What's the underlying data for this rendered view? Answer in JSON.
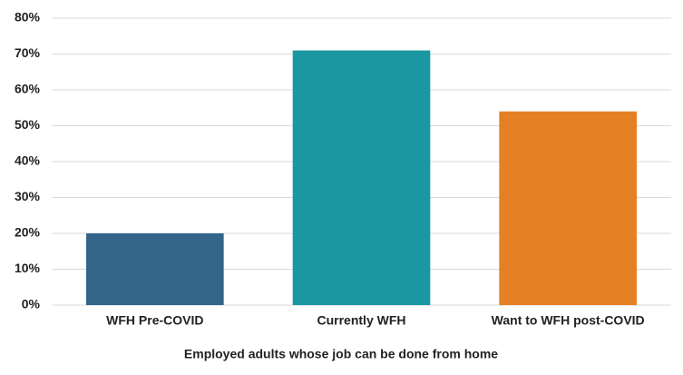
{
  "chart_data": {
    "type": "bar",
    "x_label": "Employed adults whose job can be done from home",
    "categories": [
      "WFH Pre-COVID",
      "Currently WFH",
      "Want to WFH post-COVID"
    ],
    "values": [
      20,
      71,
      54
    ],
    "colors": [
      "#33658a",
      "#1b97a2",
      "#e68025"
    ],
    "ylim": [
      0,
      80
    ],
    "yticks": [
      {
        "value": 0,
        "label": "0%"
      },
      {
        "value": 10,
        "label": "10%"
      },
      {
        "value": 20,
        "label": "20%"
      },
      {
        "value": 30,
        "label": "30%"
      },
      {
        "value": 40,
        "label": "40%"
      },
      {
        "value": 50,
        "label": "50%"
      },
      {
        "value": 60,
        "label": "60%"
      },
      {
        "value": 70,
        "label": "70%"
      },
      {
        "value": 80,
        "label": "80%"
      }
    ],
    "grid": true
  }
}
